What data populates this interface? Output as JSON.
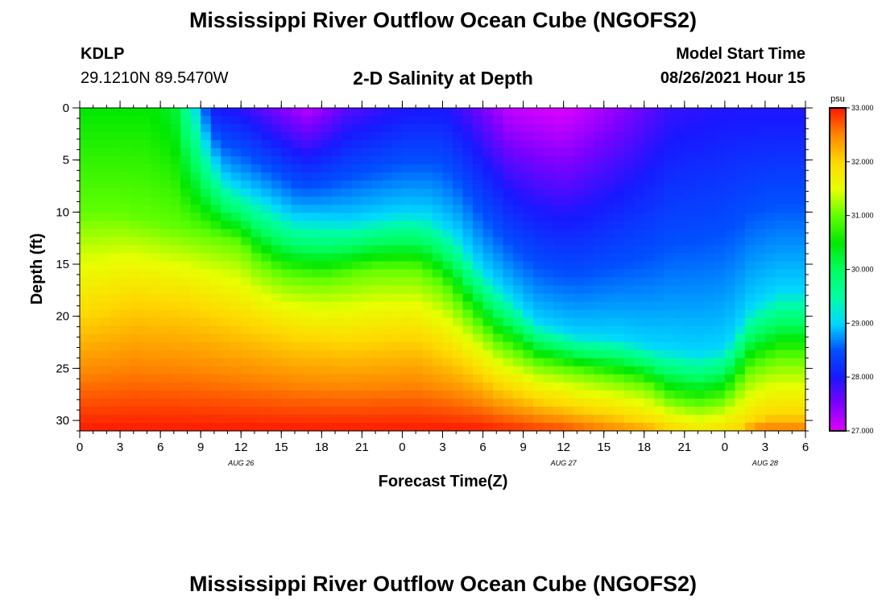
{
  "page": {
    "title_top": "Mississippi River Outflow Ocean Cube (NGOFS2)",
    "title_bottom": "Mississippi River Outflow Ocean Cube (NGOFS2)",
    "station_id": "KDLP",
    "station_coords": "29.1210N  89.5470W",
    "plot_title": "2-D Salinity at Depth",
    "model_label": "Model Start Time",
    "model_time": "08/26/2021 Hour 15"
  },
  "chart_data": {
    "type": "heatmap",
    "title": "2-D Salinity at Depth",
    "xlabel": "Forecast Time(Z)",
    "ylabel": "Depth (ft)",
    "x_range": [
      0,
      54
    ],
    "x_ticks": [
      0,
      3,
      6,
      9,
      12,
      15,
      18,
      21,
      24,
      27,
      30,
      33,
      36,
      39,
      42,
      45,
      48,
      51,
      54
    ],
    "x_tick_labels": [
      "0",
      "3",
      "6",
      "9",
      "12",
      "15",
      "18",
      "21",
      "0",
      "3",
      "6",
      "9",
      "12",
      "15",
      "18",
      "21",
      "0",
      "3",
      "6"
    ],
    "date_labels": [
      {
        "x": 12,
        "label": "AUG 26"
      },
      {
        "x": 36,
        "label": "AUG 27"
      },
      {
        "x": 51,
        "label": "AUG 28"
      }
    ],
    "y_range": [
      0,
      31
    ],
    "y_ticks": [
      0,
      5,
      10,
      15,
      20,
      25,
      30
    ],
    "y_tick_labels": [
      "0",
      "5",
      "10",
      "15",
      "20",
      "25",
      "30"
    ],
    "colorbar": {
      "unit": "psu",
      "min": 27.0,
      "max": 33.0,
      "tick_labels": [
        "33.000",
        "32.000",
        "31.000",
        "30.000",
        "29.000",
        "28.000",
        "27.000"
      ],
      "tick_values": [
        33,
        32,
        31,
        30,
        29,
        28,
        27
      ]
    },
    "colormap": [
      {
        "v": 27.0,
        "color": "#e000ff"
      },
      {
        "v": 27.5,
        "color": "#8000ff"
      },
      {
        "v": 28.0,
        "color": "#1818ff"
      },
      {
        "v": 28.5,
        "color": "#0050ff"
      },
      {
        "v": 29.0,
        "color": "#00d8ff"
      },
      {
        "v": 29.5,
        "color": "#00ffa0"
      },
      {
        "v": 30.0,
        "color": "#00ff60"
      },
      {
        "v": 30.5,
        "color": "#00e800"
      },
      {
        "v": 31.0,
        "color": "#60ff00"
      },
      {
        "v": 31.5,
        "color": "#e8ff00"
      },
      {
        "v": 32.0,
        "color": "#ffd800"
      },
      {
        "v": 32.5,
        "color": "#ff8800"
      },
      {
        "v": 33.0,
        "color": "#ff1a00"
      }
    ],
    "surface_salinity": [
      {
        "x": 0,
        "s": 30.5
      },
      {
        "x": 5,
        "s": 30.5
      },
      {
        "x": 7,
        "s": 30.3
      },
      {
        "x": 8.5,
        "s": 29.2
      },
      {
        "x": 10,
        "s": 28.0
      },
      {
        "x": 12,
        "s": 27.9
      },
      {
        "x": 14,
        "s": 27.6
      },
      {
        "x": 17,
        "s": 27.2
      },
      {
        "x": 20,
        "s": 27.7
      },
      {
        "x": 24,
        "s": 27.95
      },
      {
        "x": 27,
        "s": 28.0
      },
      {
        "x": 29,
        "s": 27.7
      },
      {
        "x": 32,
        "s": 27.15
      },
      {
        "x": 36,
        "s": 27.0
      },
      {
        "x": 40,
        "s": 27.4
      },
      {
        "x": 44,
        "s": 27.85
      },
      {
        "x": 48,
        "s": 27.95
      },
      {
        "x": 54,
        "s": 27.95
      }
    ],
    "contours": [
      {
        "s": 29.0,
        "depth": [
          {
            "x": 0,
            "d": 0
          },
          {
            "x": 7,
            "d": 0
          },
          {
            "x": 9,
            "d": 2
          },
          {
            "x": 10,
            "d": 5
          },
          {
            "x": 11,
            "d": 7
          },
          {
            "x": 14,
            "d": 9
          },
          {
            "x": 16,
            "d": 10.5
          },
          {
            "x": 20,
            "d": 10.8
          },
          {
            "x": 24,
            "d": 10
          },
          {
            "x": 26,
            "d": 10.2
          },
          {
            "x": 28,
            "d": 12
          },
          {
            "x": 30,
            "d": 15.5
          },
          {
            "x": 32,
            "d": 18
          },
          {
            "x": 34,
            "d": 20.5
          },
          {
            "x": 37,
            "d": 21.8
          },
          {
            "x": 40,
            "d": 22
          },
          {
            "x": 43,
            "d": 23
          },
          {
            "x": 46,
            "d": 23.5
          },
          {
            "x": 48,
            "d": 23
          },
          {
            "x": 50,
            "d": 19
          },
          {
            "x": 52,
            "d": 17.5
          },
          {
            "x": 54,
            "d": 17.5
          }
        ]
      },
      {
        "s": 31.0,
        "depth": [
          {
            "x": 0,
            "d": 10
          },
          {
            "x": 3,
            "d": 10
          },
          {
            "x": 6,
            "d": 11
          },
          {
            "x": 9,
            "d": 12
          },
          {
            "x": 12,
            "d": 13
          },
          {
            "x": 13,
            "d": 14.5
          },
          {
            "x": 15,
            "d": 16
          },
          {
            "x": 18,
            "d": 16.5
          },
          {
            "x": 22,
            "d": 15.5
          },
          {
            "x": 25,
            "d": 15.5
          },
          {
            "x": 27,
            "d": 17
          },
          {
            "x": 29,
            "d": 20
          },
          {
            "x": 31,
            "d": 22.5
          },
          {
            "x": 34,
            "d": 24.5
          },
          {
            "x": 38,
            "d": 25.5
          },
          {
            "x": 42,
            "d": 26.5
          },
          {
            "x": 44,
            "d": 28
          },
          {
            "x": 46,
            "d": 28.5
          },
          {
            "x": 48,
            "d": 28
          },
          {
            "x": 50,
            "d": 25
          },
          {
            "x": 52,
            "d": 24
          },
          {
            "x": 54,
            "d": 24
          }
        ]
      },
      {
        "s": 32.0,
        "depth": [
          {
            "x": 0,
            "d": 20
          },
          {
            "x": 4,
            "d": 18.5
          },
          {
            "x": 8,
            "d": 19
          },
          {
            "x": 12,
            "d": 20.5
          },
          {
            "x": 16,
            "d": 22
          },
          {
            "x": 20,
            "d": 22.5
          },
          {
            "x": 25,
            "d": 22
          },
          {
            "x": 28,
            "d": 24
          },
          {
            "x": 31,
            "d": 26.5
          },
          {
            "x": 34,
            "d": 28
          },
          {
            "x": 37,
            "d": 28.8
          },
          {
            "x": 40,
            "d": 29.5
          },
          {
            "x": 43,
            "d": 30.5
          },
          {
            "x": 46,
            "d": 31.5
          },
          {
            "x": 49,
            "d": 31
          },
          {
            "x": 51,
            "d": 29.5
          },
          {
            "x": 54,
            "d": 29.5
          }
        ]
      }
    ],
    "bottom_salinity": [
      {
        "x": 0,
        "s": 33.0
      },
      {
        "x": 30,
        "s": 33.0
      },
      {
        "x": 36,
        "s": 32.8
      },
      {
        "x": 40,
        "s": 32.5
      },
      {
        "x": 44,
        "s": 32.3
      },
      {
        "x": 48,
        "s": 32.3
      },
      {
        "x": 50,
        "s": 32.6
      },
      {
        "x": 54,
        "s": 32.6
      }
    ]
  }
}
